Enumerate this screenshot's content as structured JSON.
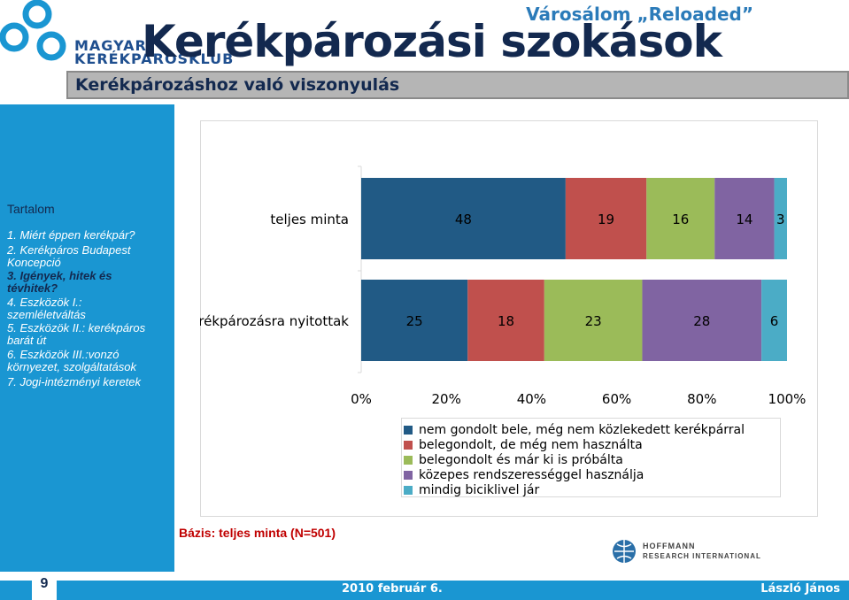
{
  "header": {
    "logo_text_line1": "MAGYAR",
    "logo_text_line2": "KERÉKPÁROSKLUB",
    "project": "Városálom „Reloaded”",
    "title": "Kerékpározási szokások",
    "subtitle": "Kerékpározáshoz való viszonyulás"
  },
  "sidebar": {
    "heading": "Tartalom",
    "items": [
      {
        "label": "1. Miért éppen kerékpár?"
      },
      {
        "label": "2. Kerékpáros Budapest Koncepció"
      },
      {
        "label": "3. Igények, hitek és tévhitek?"
      },
      {
        "label": "4. Eszközök I.: szemléletváltás"
      },
      {
        "label": "5. Eszközök II.: kerékpáros barát út"
      },
      {
        "label": "6. Eszközök III.:vonzó környezet, szolgáltatások"
      },
      {
        "label": "7. Jogi-intézményi keretek"
      }
    ]
  },
  "chart_data": {
    "type": "bar",
    "orientation": "horizontal",
    "stacked": true,
    "categories": [
      "teljes minta",
      "kerékpározásra nyitottak"
    ],
    "series": [
      {
        "name": "nem gondolt bele, még nem közlekedett kerékpárral",
        "values": [
          48,
          25
        ],
        "color": "#215a85"
      },
      {
        "name": "belegondolt, de még nem használta",
        "values": [
          19,
          18
        ],
        "color": "#c0504d"
      },
      {
        "name": "belegondolt és már ki is próbálta",
        "values": [
          16,
          23
        ],
        "color": "#9bbb59"
      },
      {
        "name": "közepes rendszerességgel használja",
        "values": [
          14,
          28
        ],
        "color": "#8064a2"
      },
      {
        "name": "mindig biciklivel jár",
        "values": [
          3,
          6
        ],
        "color": "#4bacc6"
      }
    ],
    "xlim": [
      0,
      100
    ],
    "x_ticks": [
      "0%",
      "20%",
      "40%",
      "60%",
      "80%",
      "100%"
    ],
    "legend_position": "bottom-right"
  },
  "basis": "Bázis: teljes  minta (N=501)",
  "hoffmann": {
    "line1": "HOFFMANN",
    "line2": "RESEARCH INTERNATIONAL"
  },
  "footer": {
    "page_number": "9",
    "date": "2010 február 6.",
    "author": "László János"
  },
  "colors": {
    "accent": "#1a96d2",
    "title": "#13294f"
  }
}
